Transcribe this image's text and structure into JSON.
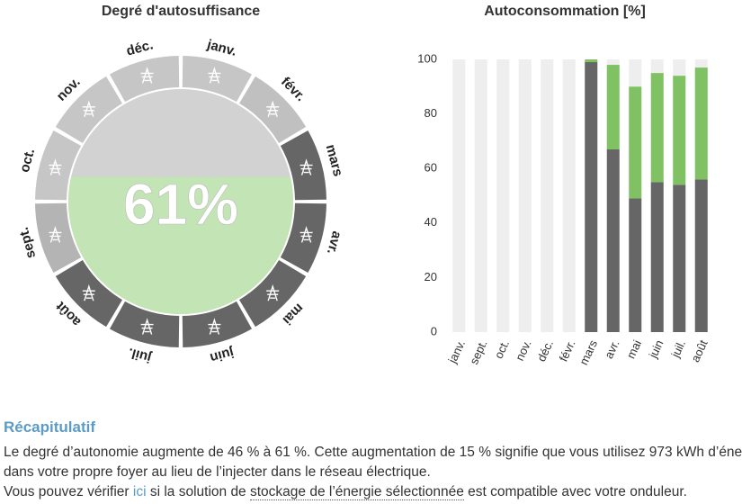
{
  "gauge": {
    "title": "Degré d'autosuffisance",
    "value": 61,
    "label": "61%",
    "segments": [
      {
        "label": "janv.",
        "color": "#c6c6c6"
      },
      {
        "label": "févr.",
        "color": "#c0c0c0"
      },
      {
        "label": "mars",
        "color": "#666666"
      },
      {
        "label": "avr.",
        "color": "#666666"
      },
      {
        "label": "mai",
        "color": "#666666"
      },
      {
        "label": "juin",
        "color": "#666666"
      },
      {
        "label": "juil.",
        "color": "#666666"
      },
      {
        "label": "août",
        "color": "#666666"
      },
      {
        "label": "sept.",
        "color": "#b4b4b4"
      },
      {
        "label": "oct.",
        "color": "#c6c6c6"
      },
      {
        "label": "nov.",
        "color": "#c6c6c6"
      },
      {
        "label": "déc.",
        "color": "#c6c6c6"
      }
    ],
    "fill_color": "#c3e4b4",
    "empty_color": "#d2d2d2"
  },
  "chart_data": {
    "type": "bar",
    "stacked": true,
    "title": "Autoconsommation [%]",
    "categories": [
      "janv.",
      "sept.",
      "oct.",
      "nov.",
      "déc.",
      "févr.",
      "mars",
      "avr.",
      "mai",
      "juin",
      "juil.",
      "août"
    ],
    "series": [
      {
        "color": "#666666",
        "values": [
          0,
          0,
          0,
          0,
          0,
          0,
          99,
          67,
          49,
          55,
          54,
          56
        ]
      },
      {
        "color": "#80c263",
        "values": [
          0,
          0,
          0,
          0,
          0,
          0,
          1,
          31,
          41,
          40,
          40,
          41
        ]
      }
    ],
    "track_color": "#eeeeee",
    "ylim": [
      0,
      100
    ],
    "yticks": [
      0,
      20,
      40,
      60,
      80,
      100
    ],
    "grid": false
  },
  "summary": {
    "heading": "Récapitulatif",
    "lines": [
      "Le degré d’autonomie augmente de 46 % à 61 %. Cette augmentation de 15 % signifie que vous utilisez 973 kWh d’éne",
      "dans votre propre foyer au lieu de l’injecter dans le réseau électrique."
    ],
    "note": [
      "Vous pouvez vérifier ",
      "ici",
      " si la solution de ",
      "stockage de l’énergie sélectionnée",
      " est compatible avec votre onduleur."
    ]
  }
}
